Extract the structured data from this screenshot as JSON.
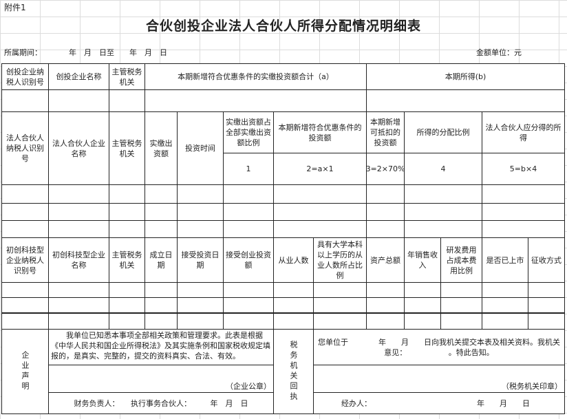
{
  "attachment_label": "附件1",
  "title": "合伙创投企业法人合伙人所得分配情况明细表",
  "period": {
    "label": "所属期间：",
    "range": "年　月　日至　　年　月　日"
  },
  "amount_unit": "金额单位：元",
  "section1": {
    "headers": [
      "创投企业纳税人识别号",
      "创投企业名称",
      "主管税务机关",
      "本期新增符合优惠条件的实缴投资额合计（a）",
      "本期所得(b)"
    ]
  },
  "section2": {
    "headers": [
      "法人合伙人纳税人识别号",
      "法人合伙人企业名称",
      "主管税务机关",
      "实缴出资额",
      "投资时间",
      "实缴出资额占全部实缴出资额比例",
      "本期新增符合优惠条件的投资额",
      "本期新增可抵扣的投资额",
      "所得的分配比例",
      "法人合伙人应分得的所得"
    ],
    "formulas": [
      "1",
      "2=a×1",
      "3=2×70%",
      "4",
      "5=b×4"
    ]
  },
  "section3": {
    "headers": [
      "初创科技型企业纳税人识别号",
      "初创科技型企业名称",
      "主管税务机关",
      "成立日期",
      "接受投资日期",
      "接受创业投资额",
      "从业人数",
      "具有大学本科以上学历的从业人数所占比例",
      "资产总额",
      "年销售收入",
      "研发费用占成本费用比例",
      "是否已上市",
      "征收方式"
    ]
  },
  "declaration": {
    "label": "企业声明",
    "text": "　　我单位已知悉本事项全部相关政策和管理要求。此表是根据《中华人民共和国企业所得税法》及其实施条例和国家税收规定填报的，是真实、完整的，提交的资料真实、合法、有效。",
    "seal": "（企业公章）",
    "signers": "财务负责人：　　执行事务合伙人：　　　年　月　日"
  },
  "receipt": {
    "label": "税务机关回执",
    "text": "您单位于　　　　年　　月　　日向我机关提交本表及相关资料。我机关意见：　　　　　　。特此告知。",
    "seal": "（税务机关印章）",
    "handler": "经办人：",
    "date": "年　　月　　日"
  }
}
